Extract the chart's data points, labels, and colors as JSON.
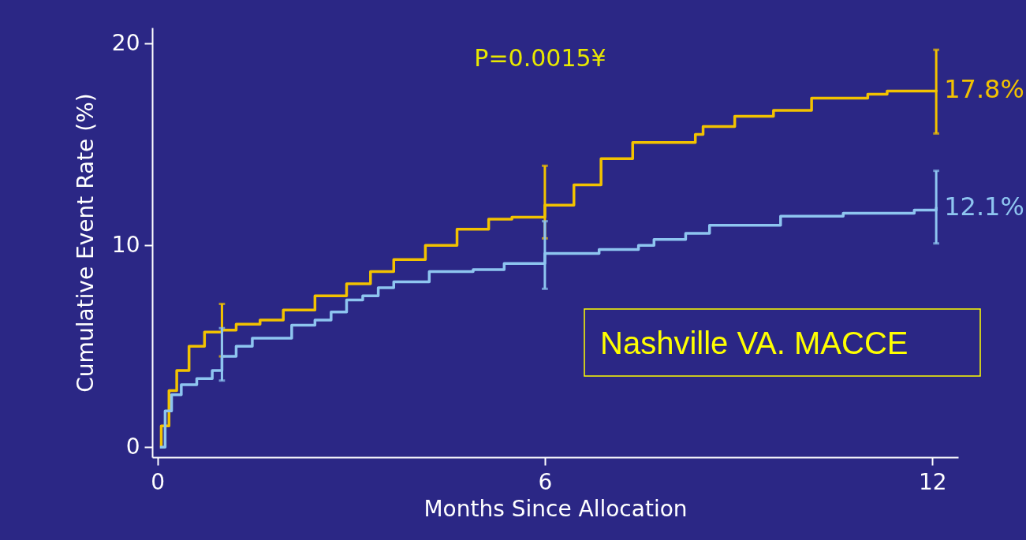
{
  "chart_data": {
    "type": "step",
    "xlabel": "Months Since Allocation",
    "ylabel": "Cumulative Event Rate (%)",
    "xlim": [
      -0.08,
      12.4
    ],
    "ylim": [
      -0.5,
      20.8
    ],
    "xticks": [
      0,
      6,
      12
    ],
    "yticks": [
      0,
      10,
      20
    ],
    "grid": false,
    "line_style": "solid",
    "marker": "none",
    "series": [
      {
        "color": "#f2c200",
        "x": [
          0.04,
          0.06,
          0.18,
          0.3,
          0.49,
          0.73,
          1.0,
          1.22,
          1.59,
          1.95,
          2.44,
          2.93,
          3.3,
          3.66,
          4.15,
          4.64,
          5.13,
          5.49,
          6.0,
          6.45,
          6.87,
          7.36,
          8.33,
          8.45,
          8.94,
          9.54,
          10.13,
          11.0,
          11.3,
          12.06
        ],
        "values": [
          0,
          1.05,
          2.8,
          3.8,
          5.0,
          5.7,
          5.8,
          6.1,
          6.3,
          6.8,
          7.5,
          8.1,
          8.7,
          9.3,
          10.0,
          10.8,
          11.3,
          11.4,
          12.0,
          13.0,
          14.3,
          15.1,
          15.5,
          15.9,
          16.4,
          16.7,
          17.3,
          17.5,
          17.65,
          17.7
        ],
        "errors": [
          null,
          null,
          null,
          null,
          null,
          null,
          [
            4.5,
            7.1
          ],
          null,
          null,
          null,
          null,
          null,
          null,
          null,
          null,
          null,
          null,
          null,
          [
            10.35,
            13.95
          ],
          null,
          null,
          null,
          null,
          null,
          null,
          null,
          null,
          null,
          null,
          [
            15.55,
            19.7
          ]
        ]
      },
      {
        "color": "#8ec5f0",
        "x": [
          0.04,
          0.12,
          0.22,
          0.37,
          0.61,
          0.85,
          1.0,
          1.22,
          1.47,
          2.08,
          2.44,
          2.69,
          2.93,
          3.18,
          3.42,
          3.66,
          4.09,
          4.21,
          4.89,
          5.37,
          6.0,
          6.84,
          7.45,
          7.69,
          8.18,
          8.55,
          9.65,
          10.62,
          11.72,
          12.06
        ],
        "values": [
          0,
          1.8,
          2.6,
          3.1,
          3.4,
          3.8,
          4.5,
          5.0,
          5.4,
          6.05,
          6.3,
          6.7,
          7.3,
          7.5,
          7.9,
          8.2,
          8.2,
          8.7,
          8.8,
          9.1,
          9.6,
          9.8,
          10.0,
          10.3,
          10.6,
          11.0,
          11.45,
          11.6,
          11.75,
          11.9
        ],
        "errors": [
          null,
          null,
          null,
          null,
          null,
          null,
          [
            3.3,
            5.9
          ],
          null,
          null,
          null,
          null,
          null,
          null,
          null,
          null,
          null,
          null,
          null,
          null,
          null,
          [
            7.85,
            11.2
          ],
          null,
          null,
          null,
          null,
          null,
          null,
          null,
          null,
          [
            10.1,
            13.7
          ]
        ]
      }
    ],
    "annotations": [
      "P=0.0015¥",
      "Nashville VA. MACCE",
      {
        "text": "17.8%",
        "x": 12.06,
        "y": 17.7
      },
      {
        "text": "12.1%",
        "x": 12.06,
        "y": 11.9
      }
    ]
  }
}
